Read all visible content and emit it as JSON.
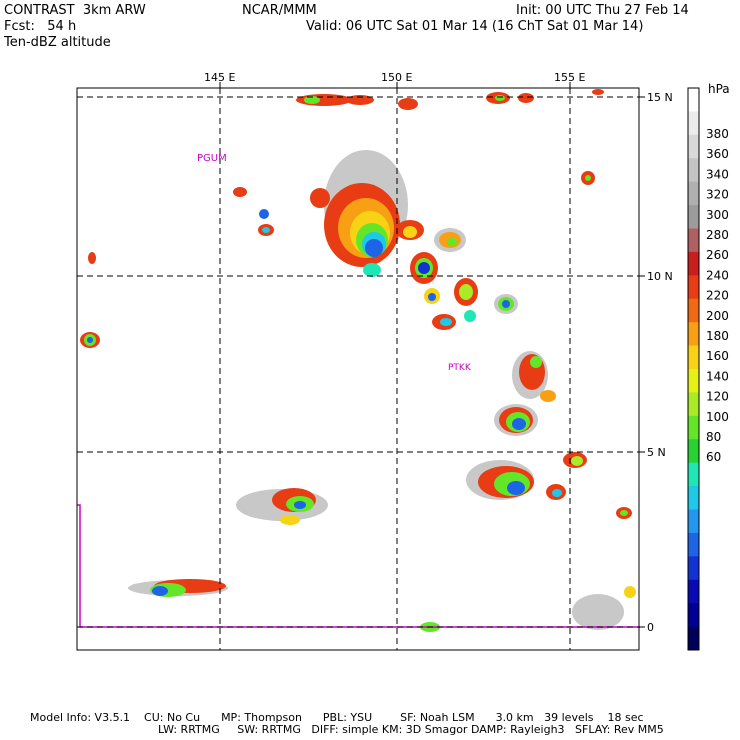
{
  "header": {
    "model": "CONTRAST  3km ARW",
    "org": "NCAR/MMM",
    "init": "Init: 00 UTC Thu 27 Feb 14",
    "fcst": "Fcst:   54 h",
    "valid": "Valid: 06 UTC Sat 01 Mar 14 (16 ChT Sat 01 Mar 14)",
    "field": "Ten-dBZ altitude"
  },
  "map": {
    "lon_labels": [
      "145 E",
      "150 E",
      "155 E"
    ],
    "lat_labels": [
      "15 N",
      "10 N",
      "5 N",
      "0"
    ],
    "stations": [
      {
        "id": "PGUM",
        "label": "PGUM"
      },
      {
        "id": "PTKK",
        "label": "PTKK"
      }
    ],
    "station_color": "#cc00cc"
  },
  "colorbar": {
    "unit": "hPa",
    "labels": [
      "380",
      "360",
      "340",
      "320",
      "300",
      "280",
      "260",
      "240",
      "220",
      "200",
      "180",
      "160",
      "140",
      "120",
      "100",
      "80",
      "60"
    ],
    "colors": [
      "#ffffff",
      "#ececec",
      "#d8d8d8",
      "#c4c4c4",
      "#b0b0b0",
      "#9c9c9c",
      "#b06060",
      "#c81e1e",
      "#e83c14",
      "#f06a14",
      "#f8a014",
      "#f8d214",
      "#e6f014",
      "#aaeb28",
      "#64e628",
      "#28d232",
      "#1ee6b4",
      "#1ec8e6",
      "#2396f0",
      "#1e64e6",
      "#1432d2",
      "#0a0ab4",
      "#000096",
      "#00005a"
    ]
  },
  "footer": {
    "line1": "Model Info: V3.5.1    CU: No Cu      MP: Thompson      PBL: YSU        SF: Noah LSM      3.0 km   39 levels    18 sec",
    "line2": "LW: RRTMG     SW: RRTMG   DIFF: simple KM: 3D Smagor DAMP: Rayleigh3   SFLAY: Rev MM5"
  }
}
